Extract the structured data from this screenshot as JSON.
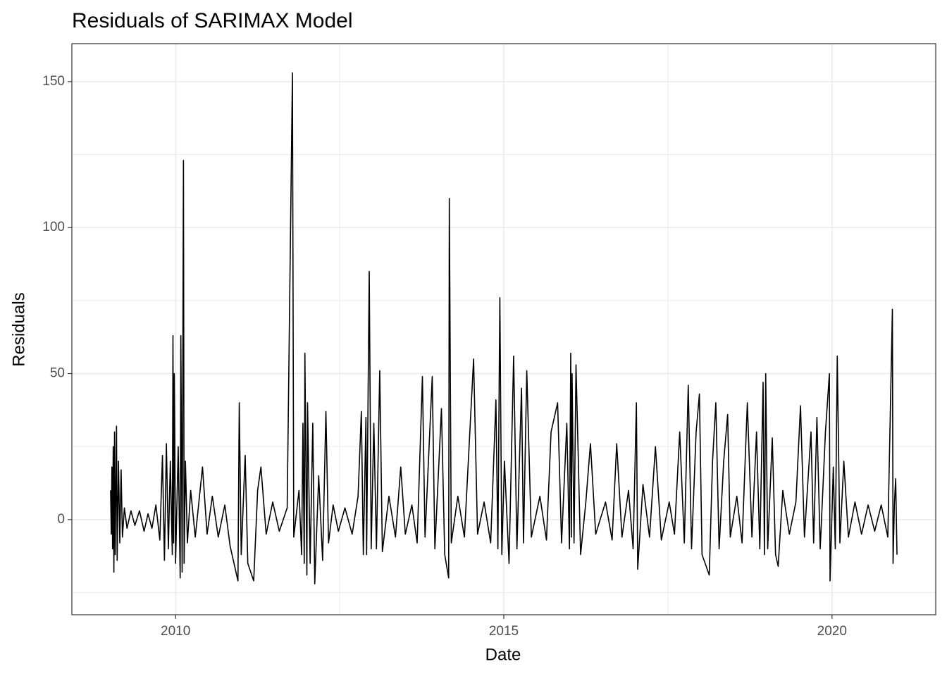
{
  "chart_data": {
    "type": "line",
    "title": "Residuals of SARIMAX Model",
    "x_label": "Date",
    "y_label": "Residuals",
    "x": [
      2009.01,
      2009.02,
      2009.03,
      2009.04,
      2009.05,
      2009.06,
      2009.07,
      2009.08,
      2009.1,
      2009.11,
      2009.13,
      2009.15,
      2009.17,
      2009.19,
      2009.22,
      2009.26,
      2009.32,
      2009.38,
      2009.45,
      2009.52,
      2009.58,
      2009.64,
      2009.7,
      2009.76,
      2009.8,
      2009.83,
      2009.86,
      2009.89,
      2009.92,
      2009.95,
      2009.96,
      2009.97,
      2009.98,
      2010.0,
      2010.04,
      2010.07,
      2010.08,
      2010.1,
      2010.12,
      2010.13,
      2010.15,
      2010.18,
      2010.23,
      2010.3,
      2010.41,
      2010.48,
      2010.56,
      2010.65,
      2010.75,
      2010.83,
      2010.95,
      2010.97,
      2011.0,
      2011.06,
      2011.1,
      2011.19,
      2011.25,
      2011.3,
      2011.38,
      2011.48,
      2011.58,
      2011.7,
      2011.78,
      2011.8,
      2011.88,
      2011.92,
      2011.94,
      2011.96,
      2011.97,
      2012.0,
      2012.01,
      2012.05,
      2012.09,
      2012.12,
      2012.18,
      2012.24,
      2012.29,
      2012.33,
      2012.4,
      2012.48,
      2012.58,
      2012.69,
      2012.78,
      2012.83,
      2012.86,
      2012.9,
      2012.91,
      2012.95,
      2012.98,
      2013.02,
      2013.06,
      2013.11,
      2013.15,
      2013.25,
      2013.35,
      2013.43,
      2013.5,
      2013.6,
      2013.68,
      2013.76,
      2013.8,
      2013.91,
      2013.95,
      2014.05,
      2014.1,
      2014.16,
      2014.17,
      2014.2,
      2014.3,
      2014.4,
      2014.54,
      2014.6,
      2014.7,
      2014.8,
      2014.88,
      2014.91,
      2014.94,
      2014.97,
      2015.01,
      2015.08,
      2015.15,
      2015.2,
      2015.27,
      2015.3,
      2015.35,
      2015.42,
      2015.55,
      2015.65,
      2015.72,
      2015.82,
      2015.88,
      2015.96,
      2016.0,
      2016.02,
      2016.03,
      2016.04,
      2016.07,
      2016.1,
      2016.17,
      2016.25,
      2016.32,
      2016.4,
      2016.55,
      2016.65,
      2016.72,
      2016.8,
      2016.9,
      2016.97,
      2017.02,
      2017.04,
      2017.12,
      2017.22,
      2017.31,
      2017.4,
      2017.52,
      2017.6,
      2017.68,
      2017.75,
      2017.81,
      2017.86,
      2017.93,
      2017.98,
      2018.02,
      2018.13,
      2018.18,
      2018.23,
      2018.28,
      2018.35,
      2018.41,
      2018.45,
      2018.55,
      2018.63,
      2018.71,
      2018.78,
      2018.85,
      2018.9,
      2018.95,
      2018.97,
      2018.99,
      2019.02,
      2019.09,
      2019.14,
      2019.18,
      2019.25,
      2019.35,
      2019.45,
      2019.52,
      2019.58,
      2019.68,
      2019.72,
      2019.77,
      2019.82,
      2019.9,
      2019.96,
      2019.97,
      2020.02,
      2020.05,
      2020.08,
      2020.12,
      2020.18,
      2020.25,
      2020.35,
      2020.45,
      2020.55,
      2020.65,
      2020.75,
      2020.85,
      2020.92,
      2020.93,
      2020.95,
      2020.97,
      2020.99
    ],
    "series": [
      {
        "name": "Residuals",
        "color": "#000000",
        "values": [
          10,
          -5,
          18,
          -10,
          25,
          -18,
          30,
          -12,
          32,
          -14,
          20,
          -8,
          17,
          -6,
          4,
          -3,
          3,
          -2,
          3,
          -4,
          2,
          -3,
          5,
          -7,
          22,
          -14,
          26,
          -10,
          20,
          -12,
          63,
          -8,
          50,
          -15,
          25,
          -20,
          63,
          -18,
          123,
          -15,
          20,
          -8,
          10,
          -6,
          18,
          -5,
          8,
          -6,
          5,
          -9,
          -21,
          40,
          -12,
          22,
          -15,
          -21,
          10,
          18,
          -5,
          6,
          -4,
          4,
          153,
          -6,
          10,
          -12,
          33,
          -15,
          57,
          -19,
          40,
          -15,
          33,
          -22,
          15,
          -14,
          37,
          -8,
          5,
          -4,
          4,
          -5,
          8,
          37,
          -12,
          35,
          -12,
          85,
          -10,
          33,
          -10,
          51,
          -11,
          8,
          -6,
          18,
          -5,
          5,
          -8,
          49,
          -6,
          49,
          -10,
          38,
          -12,
          -20,
          110,
          -8,
          8,
          -6,
          55,
          -5,
          6,
          -8,
          41,
          -10,
          76,
          -12,
          20,
          -15,
          56,
          -10,
          45,
          -8,
          51,
          -6,
          8,
          -7,
          30,
          40,
          -8,
          33,
          -10,
          57,
          -6,
          50,
          -8,
          53,
          -12,
          6,
          26,
          -5,
          6,
          -7,
          26,
          -6,
          10,
          -10,
          40,
          -17,
          12,
          -6,
          25,
          -7,
          6,
          -5,
          30,
          -8,
          46,
          -10,
          30,
          43,
          -12,
          -19,
          20,
          40,
          -10,
          20,
          36,
          -6,
          8,
          -8,
          40,
          -6,
          30,
          -10,
          47,
          -12,
          50,
          -10,
          28,
          -12,
          -16,
          10,
          -5,
          6,
          39,
          -6,
          30,
          -8,
          35,
          -10,
          30,
          50,
          -21,
          18,
          -10,
          56,
          -8,
          20,
          -6,
          6,
          -5,
          5,
          -4,
          5,
          -6,
          72,
          -15,
          5,
          14,
          -12
        ]
      }
    ],
    "xlim": [
      2008.42,
      2021.58
    ],
    "xticks": [
      2010,
      2015,
      2020
    ],
    "ylim": [
      -32.6,
      163.0
    ],
    "yticks": [
      0,
      50,
      100,
      150
    ],
    "grid": true
  }
}
